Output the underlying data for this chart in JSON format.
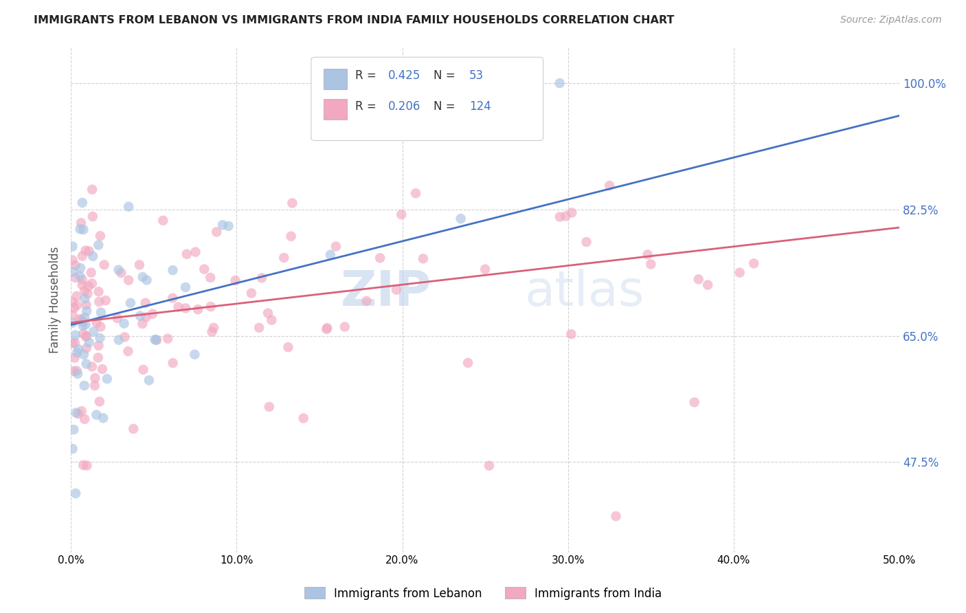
{
  "title": "IMMIGRANTS FROM LEBANON VS IMMIGRANTS FROM INDIA FAMILY HOUSEHOLDS CORRELATION CHART",
  "source": "Source: ZipAtlas.com",
  "ylabel": "Family Households",
  "blue_R": 0.425,
  "blue_N": 53,
  "pink_R": 0.206,
  "pink_N": 124,
  "legend_label_blue": "Immigrants from Lebanon",
  "legend_label_pink": "Immigrants from India",
  "blue_color": "#aac4e2",
  "pink_color": "#f2a8c0",
  "blue_line_color": "#4472c4",
  "pink_line_color": "#d9607a",
  "r_n_color": "#4472c4",
  "xmin": 0.0,
  "xmax": 0.5,
  "ymin": 0.35,
  "ymax": 1.05,
  "yticks": [
    0.475,
    0.65,
    0.825,
    1.0
  ],
  "ytick_labels": [
    "47.5%",
    "65.0%",
    "82.5%",
    "100.0%"
  ],
  "xticks": [
    0.0,
    0.1,
    0.2,
    0.3,
    0.4,
    0.5
  ],
  "xtick_labels": [
    "0.0%",
    "10.0%",
    "20.0%",
    "30.0%",
    "40.0%",
    "50.0%"
  ],
  "blue_line_y0": 0.665,
  "blue_line_y1": 0.955,
  "pink_line_y0": 0.668,
  "pink_line_y1": 0.8,
  "watermark_zip": "ZIP",
  "watermark_atlas": "atlas",
  "scatter_size": 110,
  "scatter_alpha": 0.65
}
